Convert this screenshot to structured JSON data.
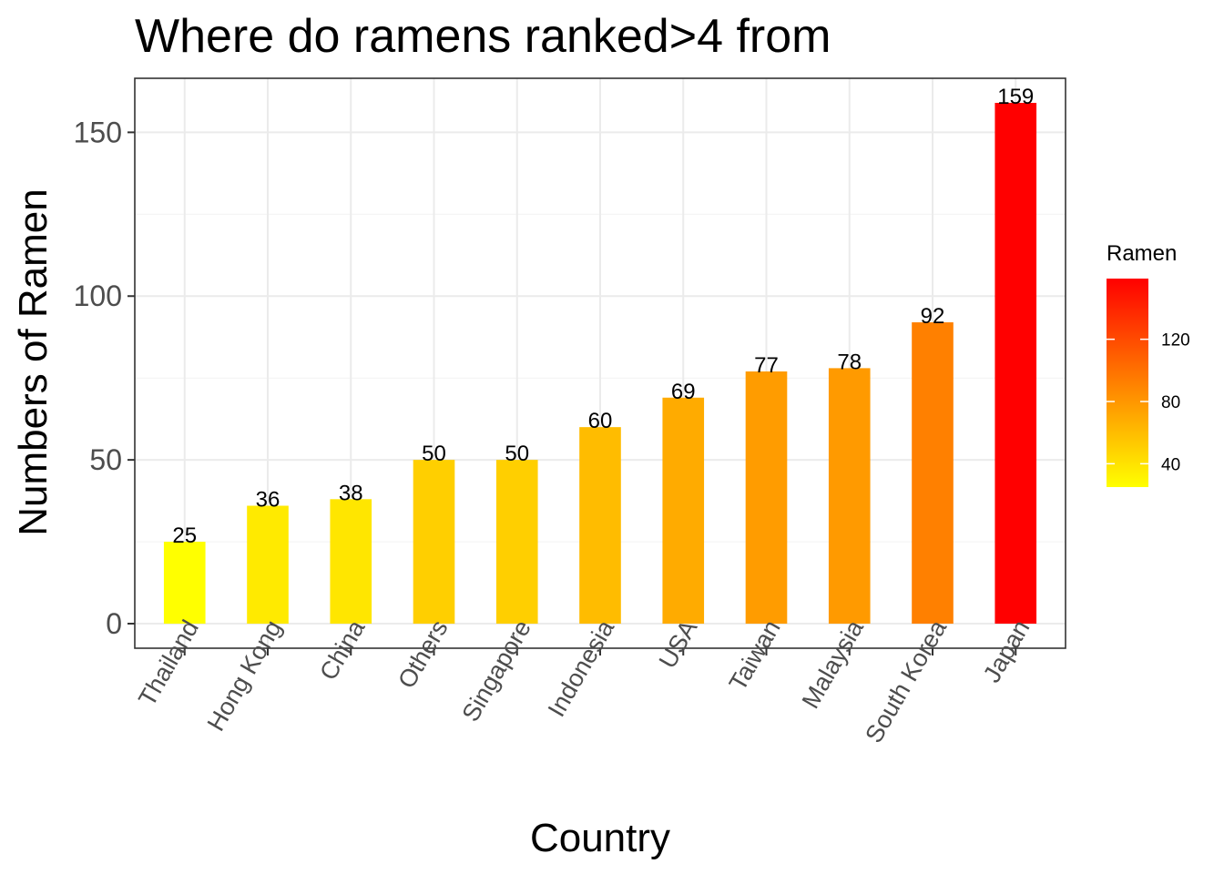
{
  "chart_data": {
    "type": "bar",
    "title": "Where do ramens ranked>4 from",
    "xlabel": "Country",
    "ylabel": "Numbers of Ramen",
    "categories": [
      "Thailand",
      "Hong Kong",
      "China",
      "Others",
      "Singapore",
      "Indonesia",
      "USA",
      "Taiwan",
      "Malaysia",
      "South Korea",
      "Japan"
    ],
    "values": [
      25,
      36,
      38,
      50,
      50,
      60,
      69,
      77,
      78,
      92,
      159
    ],
    "ylim": [
      -7.5,
      166.5
    ],
    "yticks": [
      0,
      50,
      100,
      150
    ],
    "grid": true,
    "data_labels": true,
    "fill_scale": {
      "low_color": "#ffff00",
      "high_color": "#ff0000",
      "range": [
        25,
        159
      ]
    },
    "legend": {
      "title": "Ramen",
      "placement": "right",
      "ticks": [
        40,
        80,
        120
      ]
    }
  }
}
